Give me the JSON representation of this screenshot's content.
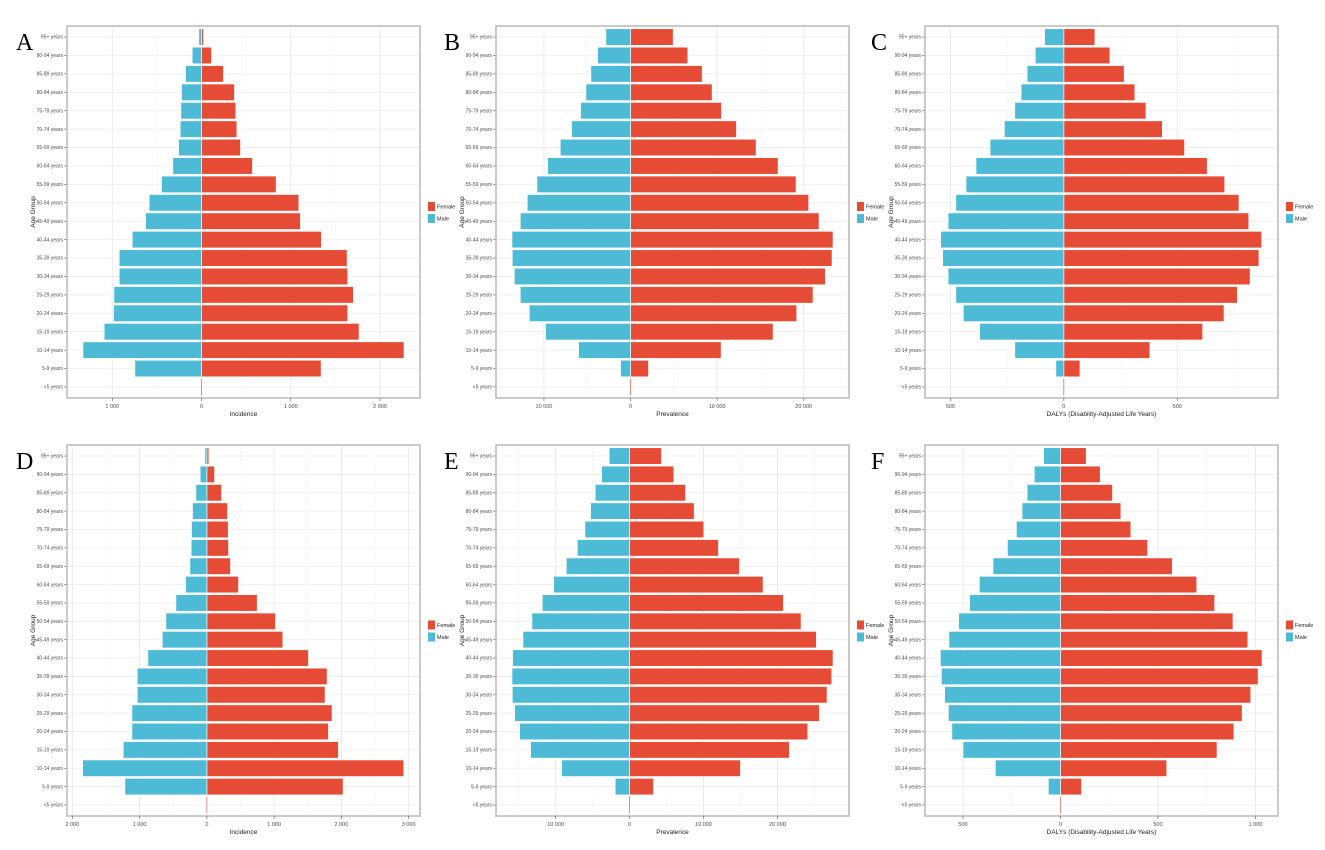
{
  "legend": {
    "female_label": "Female",
    "male_label": "Male",
    "female_color": "#E64B35",
    "male_color": "#4DBBD5"
  },
  "categories": [
    "95+ years",
    "90-94 years",
    "85-89 years",
    "80-84 years",
    "75-79 years",
    "70-74 years",
    "65-69 years",
    "60-64 years",
    "55-59 years",
    "50-54 years",
    "45-49 years",
    "40-44 years",
    "35-39 years",
    "30-34 years",
    "25-29 years",
    "20-24 years",
    "15-19 years",
    "10-14 years",
    "5-9 years",
    "<5 years"
  ],
  "chart_data": [
    {
      "type": "bar",
      "orientation": "horizontal",
      "style": "population-pyramid",
      "panel": "A",
      "xlabel": "Incidence",
      "ylabel": "Age Group",
      "xlim": [
        -1507,
        2448
      ],
      "ticks": [
        {
          "value": -1000,
          "label": "1 000"
        },
        {
          "value": 0,
          "label": "0"
        },
        {
          "value": 1000,
          "label": "1 000"
        },
        {
          "value": 2000,
          "label": "2 000"
        }
      ],
      "series": [
        {
          "name": "Female",
          "values": [
            22,
            112,
            246,
            369,
            384,
            396,
            437,
            571,
            836,
            1090,
            1108,
            1343,
            1631,
            1638,
            1701,
            1638,
            1765,
            2269,
            1340,
            0
          ]
        },
        {
          "name": "Male",
          "values": [
            30,
            104,
            179,
            224,
            231,
            239,
            257,
            321,
            448,
            586,
            627,
            776,
            922,
            922,
            981,
            985,
            1090,
            1328,
            746,
            0
          ]
        }
      ]
    },
    {
      "type": "bar",
      "orientation": "horizontal",
      "style": "population-pyramid",
      "panel": "B",
      "xlabel": "Prevalence",
      "ylabel": "Age Group",
      "xlim": [
        -15538,
        25231
      ],
      "ticks": [
        {
          "value": -10000,
          "label": "10 000"
        },
        {
          "value": 0,
          "label": "0"
        },
        {
          "value": 10000,
          "label": "10 000"
        },
        {
          "value": 20000,
          "label": "20 000"
        }
      ],
      "series": [
        {
          "name": "Female",
          "values": [
            4923,
            6615,
            8269,
            9423,
            10500,
            12231,
            14500,
            17038,
            19115,
            20577,
            21769,
            23385,
            23269,
            22500,
            21077,
            19192,
            16462,
            10462,
            2077,
            0
          ]
        },
        {
          "name": "Male",
          "values": [
            2846,
            3808,
            4577,
            5154,
            5769,
            6808,
            8115,
            9577,
            10808,
            11923,
            12731,
            13692,
            13654,
            13423,
            12731,
            11692,
            9808,
            6000,
            1154,
            0
          ]
        }
      ]
    },
    {
      "type": "bar",
      "orientation": "horizontal",
      "style": "population-pyramid",
      "panel": "C",
      "xlabel": "DALYs (Disability-Adjusted Life Years)",
      "ylabel": "Age Group",
      "xlim": [
        -612,
        944
      ],
      "ticks": [
        {
          "value": -500,
          "label": "500"
        },
        {
          "value": 0,
          "label": "0"
        },
        {
          "value": 500,
          "label": "500"
        }
      ],
      "series": [
        {
          "name": "Female",
          "values": [
            137,
            203,
            266,
            313,
            362,
            434,
            532,
            632,
            709,
            772,
            815,
            872,
            860,
            821,
            765,
            706,
            612,
            379,
            71,
            0
          ]
        },
        {
          "name": "Male",
          "values": [
            85,
            126,
            162,
            188,
            216,
            262,
            325,
            387,
            431,
            476,
            510,
            543,
            534,
            510,
            476,
            443,
            371,
            216,
            35,
            0
          ]
        }
      ]
    },
    {
      "type": "bar",
      "orientation": "horizontal",
      "style": "population-pyramid",
      "panel": "D",
      "xlabel": "Incidence",
      "ylabel": "Age Group",
      "xlim": [
        -2079,
        3168
      ],
      "ticks": [
        {
          "value": -2000,
          "label": "2 000"
        },
        {
          "value": -1000,
          "label": "1 000"
        },
        {
          "value": 0,
          "label": "0"
        },
        {
          "value": 1000,
          "label": "1 000"
        },
        {
          "value": 2000,
          "label": "2 000"
        },
        {
          "value": 3000,
          "label": "3 000"
        }
      ],
      "series": [
        {
          "name": "Female",
          "values": [
            30,
            114,
            218,
            307,
            317,
            322,
            351,
            470,
            748,
            1020,
            1129,
            1510,
            1787,
            1757,
            1861,
            1807,
            1955,
            2926,
            2025,
            0
          ]
        },
        {
          "name": "Male",
          "values": [
            30,
            99,
            163,
            213,
            228,
            233,
            252,
            317,
            460,
            609,
            663,
            876,
            1035,
            1035,
            1114,
            1114,
            1243,
            1847,
            1218,
            0
          ]
        }
      ]
    },
    {
      "type": "bar",
      "orientation": "horizontal",
      "style": "population-pyramid",
      "panel": "E",
      "xlabel": "Prevalence",
      "ylabel": "Age Group",
      "xlim": [
        -18063,
        29685
      ],
      "ticks": [
        {
          "value": -10000,
          "label": "10 000"
        },
        {
          "value": 0,
          "label": "0"
        },
        {
          "value": 10000,
          "label": "10 000"
        },
        {
          "value": 20000,
          "label": "20 000"
        }
      ],
      "series": [
        {
          "name": "Female",
          "values": [
            4324,
            5991,
            7568,
            8739,
            10045,
            12027,
            14865,
            18063,
            20811,
            23198,
            25270,
            27523,
            27342,
            26712,
            25676,
            24099,
            21622,
            15000,
            3243,
            0
          ]
        },
        {
          "name": "Male",
          "values": [
            2748,
            3784,
            4640,
            5270,
            6036,
            7072,
            8559,
            10270,
            11802,
            13198,
            14414,
            15811,
            15901,
            15856,
            15541,
            14865,
            13378,
            9189,
            1937,
            0
          ]
        }
      ]
    },
    {
      "type": "bar",
      "orientation": "horizontal",
      "style": "population-pyramid",
      "panel": "F",
      "xlabel": "DALYs (Disability-Adjusted Life Years)",
      "ylabel": "Age Group",
      "xlim": [
        -695,
        1116
      ],
      "ticks": [
        {
          "value": -500,
          "label": "500"
        },
        {
          "value": 0,
          "label": "0"
        },
        {
          "value": 500,
          "label": "500"
        },
        {
          "value": 1000,
          "label": "1 000"
        }
      ],
      "series": [
        {
          "name": "Female",
          "values": [
            132,
            204,
            267,
            310,
            361,
            447,
            574,
            699,
            791,
            885,
            961,
            1034,
            1014,
            976,
            932,
            890,
            803,
            545,
            108,
            0
          ]
        },
        {
          "name": "Male",
          "values": [
            86,
            134,
            171,
            197,
            226,
            272,
            346,
            416,
            466,
            522,
            572,
            616,
            611,
            594,
            575,
            557,
            500,
            334,
            62,
            0
          ]
        }
      ]
    }
  ]
}
